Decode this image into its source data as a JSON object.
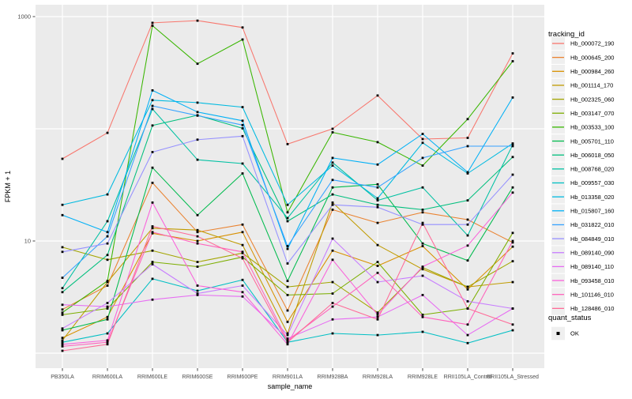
{
  "chart_data": {
    "type": "line",
    "title": "",
    "xlabel": "sample_name",
    "ylabel": "FPKM + 1",
    "y_scale": "log10",
    "y_tick_labels": [
      "10",
      "1000"
    ],
    "y_tick_values": [
      10,
      1000
    ],
    "y_gridline_values": [
      1,
      10,
      100,
      1000
    ],
    "ylim": [
      1.0,
      1100
    ],
    "grid": true,
    "panel_bg": "#EBEBEB",
    "grid_color": "#FFFFFF",
    "tick_text_color": "#4D4D4D",
    "title_text_color": "#000000",
    "marker_color": "#000000",
    "marker_shape": "square",
    "legend_position": "right",
    "legend_title": "tracking_id",
    "quant_legend": {
      "title": "quant_status",
      "items": [
        {
          "label": "OK",
          "marker": "black-square"
        }
      ]
    },
    "categories": [
      "PB350LA",
      "RRIM600LA",
      "RRIM600LE",
      "RRIM600SE",
      "RRIM600PE",
      "RRIM901LA",
      "RRIM928BA",
      "RRIM928LA",
      "RRIM928LE",
      "RRII105LA_Control",
      "RRII105LA_Stressed"
    ],
    "series": [
      {
        "name": "Hb_000072_190",
        "color": "#F8766D",
        "values": [
          54,
          92,
          880,
          920,
          800,
          73,
          100,
          198,
          81,
          83,
          470
        ]
      },
      {
        "name": "Hb_000645_200",
        "color": "#EA8331",
        "values": [
          2.45,
          4.0,
          33,
          12,
          14,
          2.4,
          19,
          14.5,
          18,
          15.5,
          9.7
        ]
      },
      {
        "name": "Hb_000984_260",
        "color": "#D89000",
        "values": [
          1.37,
          2.1,
          11.7,
          10,
          12,
          1.9,
          8.2,
          6.0,
          9.0,
          3.7,
          8.9
        ]
      },
      {
        "name": "Hb_001114_170",
        "color": "#C09B00",
        "values": [
          1.3,
          4.3,
          13,
          12.5,
          9.2,
          1.5,
          22,
          9.2,
          5.6,
          3.9,
          4.3
        ]
      },
      {
        "name": "Hb_002325_060",
        "color": "#A3A500",
        "values": [
          8.8,
          6.8,
          8.2,
          6.5,
          7.8,
          3.9,
          4.3,
          2.3,
          5.8,
          3.9,
          6.6
        ]
      },
      {
        "name": "Hb_003147_070",
        "color": "#7CAE00",
        "values": [
          2.2,
          2.5,
          6.5,
          5.9,
          7.2,
          3.3,
          3.4,
          6.5,
          2.2,
          2.5,
          11.8
        ]
      },
      {
        "name": "Hb_003533_100",
        "color": "#39B600",
        "values": [
          2.3,
          4.4,
          830,
          380,
          625,
          18,
          93,
          76,
          47,
          122,
          400
        ]
      },
      {
        "name": "Hb_005701_110",
        "color": "#00BB4E",
        "values": [
          1.6,
          2.0,
          45,
          17,
          40,
          4.4,
          30,
          32,
          9.5,
          6.7,
          30
        ]
      },
      {
        "name": "Hb_006018_050",
        "color": "#00BF7D",
        "values": [
          3.5,
          7.5,
          107,
          132,
          101,
          15,
          26,
          21,
          19,
          23,
          56
        ]
      },
      {
        "name": "Hb_008768_020",
        "color": "#00C1A3",
        "values": [
          3.8,
          15,
          150,
          53,
          49,
          16,
          50,
          23,
          30,
          11.2,
          72
        ]
      },
      {
        "name": "Hb_009557_030",
        "color": "#00BFC4",
        "values": [
          1.25,
          1.5,
          4.6,
          3.6,
          4.5,
          1.25,
          1.5,
          1.45,
          1.55,
          1.23,
          1.6
        ]
      },
      {
        "name": "Hb_013358_020",
        "color": "#00BAE0",
        "values": [
          21,
          26,
          180,
          171,
          156,
          21,
          47,
          24,
          75,
          40,
          74
        ]
      },
      {
        "name": "Hb_015807_160",
        "color": "#00B0F6",
        "values": [
          17,
          12,
          220,
          141,
          118,
          8.5,
          55,
          48,
          90,
          41,
          190
        ]
      },
      {
        "name": "Hb_031822_010",
        "color": "#35A2FF",
        "values": [
          4.7,
          11,
          160,
          131,
          108,
          9,
          35,
          30,
          55,
          70,
          70
        ]
      },
      {
        "name": "Hb_084849_010",
        "color": "#9590FF",
        "values": [
          8.0,
          9.5,
          62,
          80,
          86,
          6.3,
          21,
          20,
          14,
          14,
          39
        ]
      },
      {
        "name": "Hb_089140_090",
        "color": "#C77CFF",
        "values": [
          1.66,
          2.8,
          6.2,
          3.4,
          4.0,
          1.45,
          10.5,
          4.3,
          4.9,
          2.9,
          2.5
        ]
      },
      {
        "name": "Hb_089140_110",
        "color": "#E76BF3",
        "values": [
          2.7,
          2.6,
          3.0,
          3.3,
          3.2,
          1.35,
          2.0,
          2.1,
          3.3,
          1.45,
          2.5
        ]
      },
      {
        "name": "Hb_093458_010",
        "color": "#FA62DB",
        "values": [
          1.2,
          1.3,
          22,
          4.0,
          3.5,
          1.2,
          6.8,
          2.2,
          5.9,
          9.1,
          27
        ]
      },
      {
        "name": "Hb_101146_010",
        "color": "#FF62BC",
        "values": [
          1.15,
          1.25,
          12,
          9.5,
          8.0,
          1.3,
          2.6,
          5.2,
          2.1,
          1.8,
          10
        ]
      },
      {
        "name": "Hb_128486_010",
        "color": "#FF6A98",
        "values": [
          1.05,
          1.2,
          13.5,
          11,
          7.0,
          1.25,
          2.8,
          2.0,
          14.5,
          2.5,
          1.8
        ]
      }
    ]
  }
}
